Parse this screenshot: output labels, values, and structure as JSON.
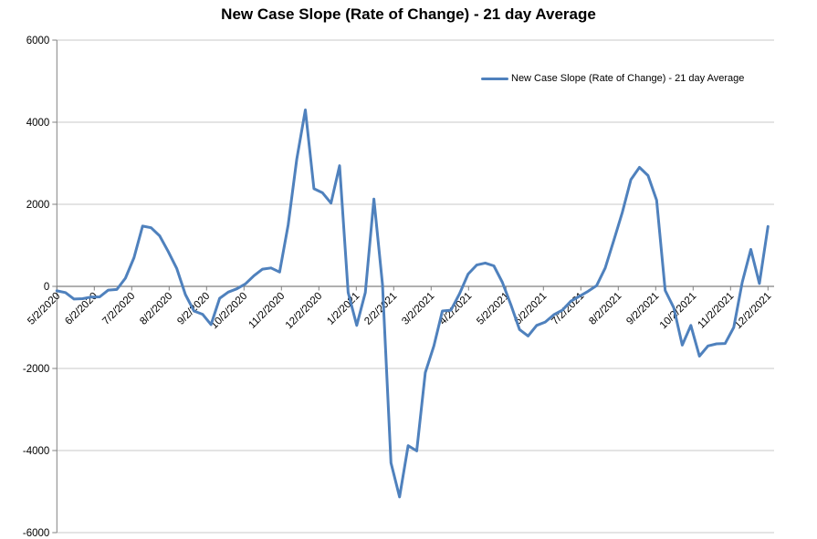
{
  "title": "New Case Slope (Rate of Change) - 21 day Average",
  "legend": {
    "label": "New Case Slope (Rate of Change) - 21 day Average"
  },
  "chart_data": {
    "type": "line",
    "title": "New Case Slope (Rate of Change) - 21 day Average",
    "xlabel": "",
    "ylabel": "",
    "ylim": [
      -6000,
      6000
    ],
    "grid": "horizontal-major",
    "legend_position": "top-right-inside",
    "line_color": "#4F81BD",
    "axis_color": "#808080",
    "gridline_color": "#C9C9C9",
    "y_ticks": [
      6000,
      4000,
      2000,
      0,
      -2000,
      -4000,
      -6000
    ],
    "y_tick_labels": [
      "6000",
      "4000",
      "2000",
      "0",
      "-2000",
      "-4000",
      "-6000"
    ],
    "x_tick_labels": [
      "5/2/2020",
      "6/2/2020",
      "7/2/2020",
      "8/2/2020",
      "9/2/2020",
      "10/2/2020",
      "11/2/2020",
      "12/2/2020",
      "1/2/2021",
      "2/2/2021",
      "3/2/2021",
      "4/2/2021",
      "5/2/2021",
      "6/2/2021",
      "7/2/2021",
      "8/2/2021",
      "9/2/2021",
      "10/2/2021",
      "11/2/2021",
      "12/2/2021"
    ],
    "series": [
      {
        "name": "New Case Slope (Rate of Change) - 21 day Average",
        "cadence": "weekly",
        "values": [
          -110,
          -150,
          -310,
          -300,
          -260,
          -255,
          -90,
          -75,
          200,
          700,
          1470,
          1430,
          1230,
          850,
          430,
          -200,
          -600,
          -680,
          -930,
          -290,
          -140,
          -60,
          60,
          260,
          420,
          450,
          350,
          1500,
          3100,
          4300,
          2380,
          2280,
          2030,
          2940,
          -150,
          -950,
          -150,
          2130,
          50,
          -4300,
          -5130,
          -3880,
          -4010,
          -2100,
          -1450,
          -600,
          -580,
          -180,
          300,
          520,
          570,
          500,
          100,
          -450,
          -1050,
          -1210,
          -950,
          -870,
          -690,
          -580,
          -360,
          -240,
          -120,
          20,
          450,
          1120,
          1800,
          2600,
          2900,
          2700,
          2100,
          -100,
          -520,
          -1430,
          -950,
          -1700,
          -1450,
          -1400,
          -1390,
          -1000,
          100,
          900,
          70,
          1460
        ]
      }
    ]
  }
}
